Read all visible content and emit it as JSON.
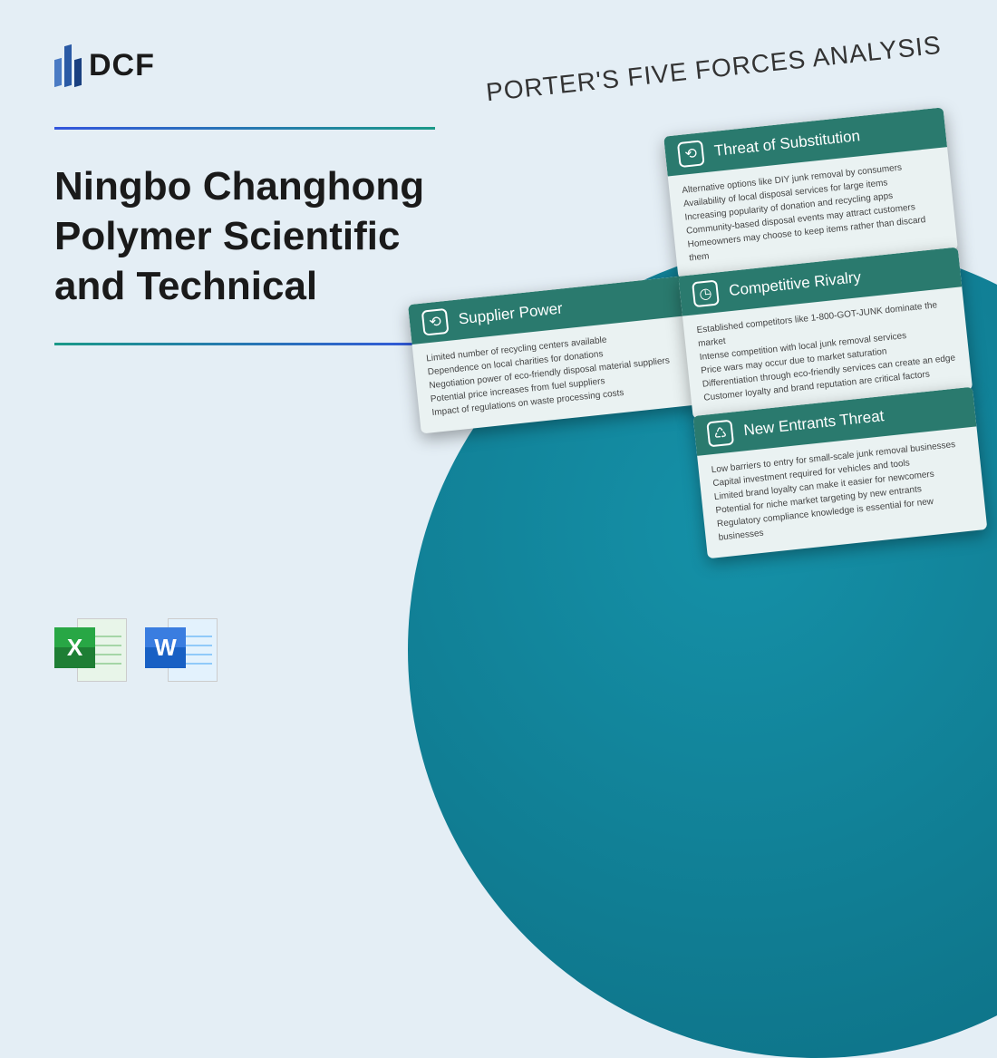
{
  "logo": {
    "text": "DCF"
  },
  "title": "Ningbo Changhong Polymer Scientific and Technical",
  "analysisTitle": "PORTER'S FIVE FORCES ANALYSIS",
  "fileIcons": {
    "excel": "X",
    "word": "W"
  },
  "cards": {
    "substitution": {
      "title": "Threat of Substitution",
      "icon": "⟲",
      "items": [
        "Alternative options like DIY junk removal by consumers",
        "Availability of local disposal services for large items",
        "Increasing popularity of donation and recycling apps",
        "Community-based disposal events may attract customers",
        "Homeowners may choose to keep items rather than discard them"
      ]
    },
    "supplier": {
      "title": "Supplier Power",
      "icon": "⟲",
      "items": [
        "Limited number of recycling centers available",
        "Dependence on local charities for donations",
        "Negotiation power of eco-friendly disposal material suppliers",
        "Potential price increases from fuel suppliers",
        "Impact of regulations on waste processing costs"
      ]
    },
    "rivalry": {
      "title": "Competitive Rivalry",
      "icon": "◷",
      "items": [
        "Established competitors like 1-800-GOT-JUNK dominate the market",
        "Intense competition with local junk removal services",
        "Price wars may occur due to market saturation",
        "Differentiation through eco-friendly services can create an edge",
        "Customer loyalty and brand reputation are critical factors"
      ]
    },
    "entrants": {
      "title": "New Entrants Threat",
      "icon": "♺",
      "items": [
        "Low barriers to entry for small-scale junk removal businesses",
        "Capital investment required for vehicles and tools",
        "Limited brand loyalty can make it easier for newcomers",
        "Potential for niche market targeting by new entrants",
        "Regulatory compliance knowledge is essential for new businesses"
      ]
    }
  }
}
